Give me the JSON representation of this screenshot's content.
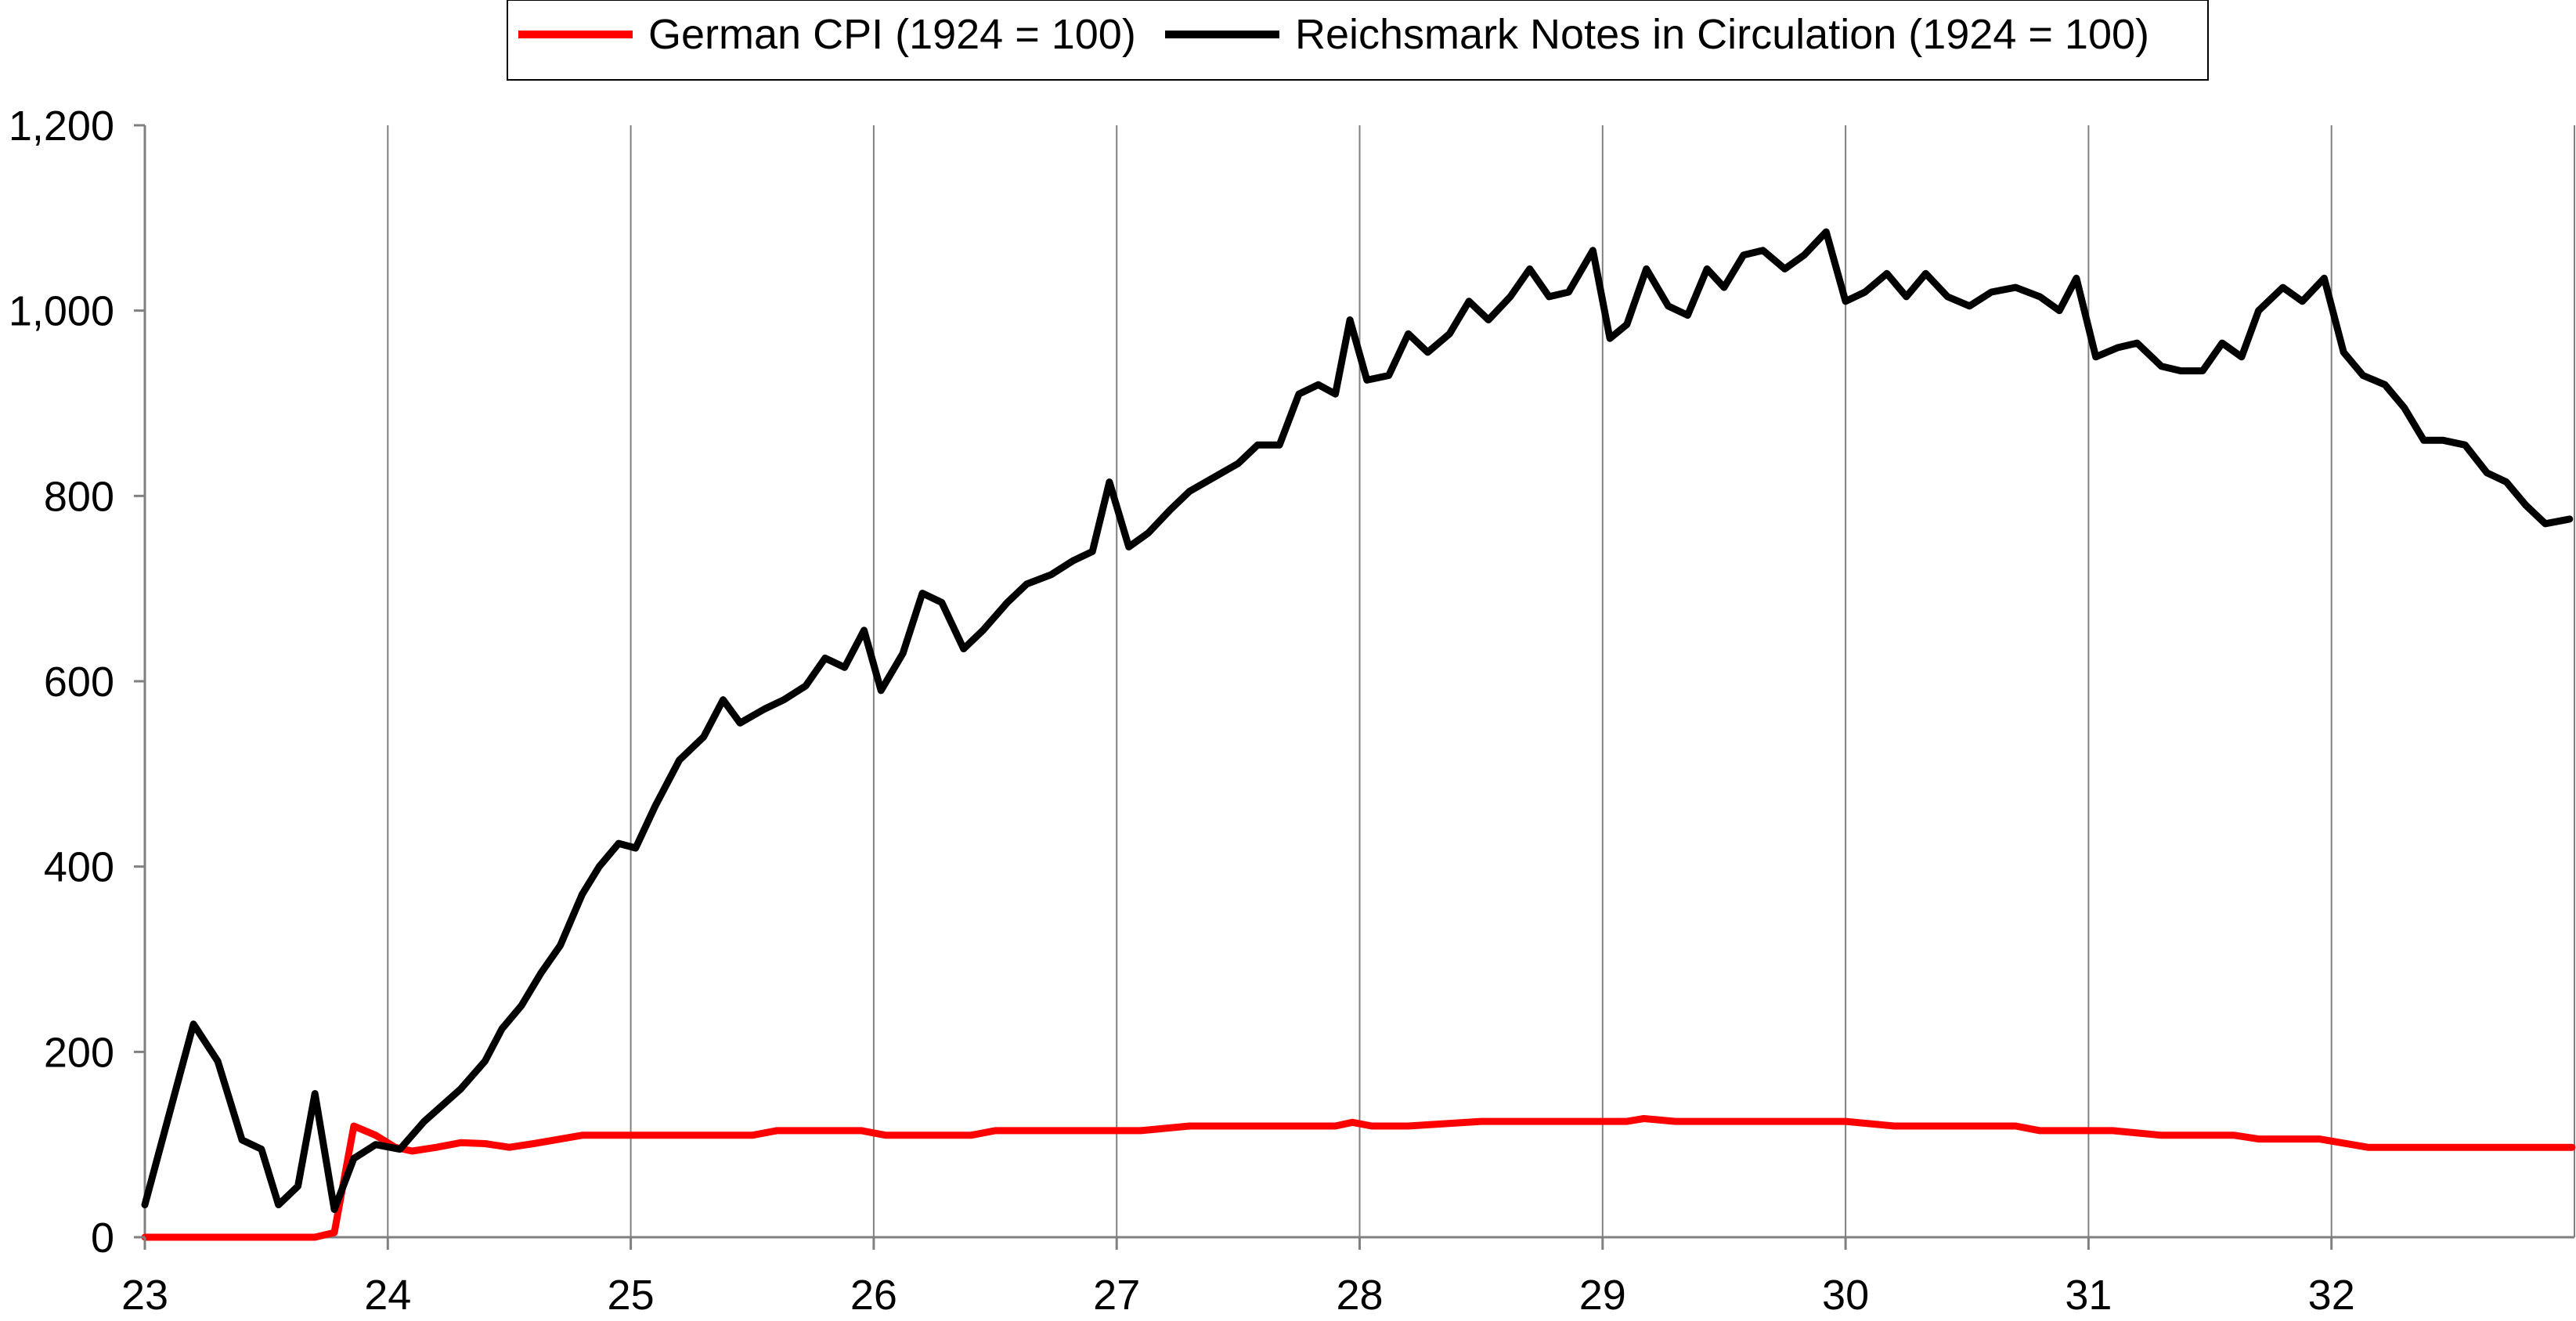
{
  "chart_data": {
    "type": "line",
    "title": "",
    "xlabel": "",
    "ylabel": "",
    "legend_position": "top-center",
    "grid": {
      "vertical": true,
      "horizontal": false
    },
    "xlim": [
      23,
      33
    ],
    "ylim": [
      0,
      1200
    ],
    "x_ticks": [
      23,
      24,
      25,
      26,
      27,
      28,
      29,
      30,
      31,
      32
    ],
    "x_tick_labels": [
      "23",
      "24",
      "25",
      "26",
      "27",
      "28",
      "29",
      "30",
      "31",
      "32"
    ],
    "y_ticks": [
      0,
      200,
      400,
      600,
      800,
      1000,
      1200
    ],
    "y_tick_labels": [
      "0",
      "200",
      "400",
      "600",
      "800",
      "1,000",
      "1,200"
    ],
    "series": [
      {
        "name": "German CPI (1924 = 100)",
        "color": "#ff0000",
        "x": [
          23.0,
          23.1,
          23.2,
          23.3,
          23.4,
          23.5,
          23.6,
          23.7,
          23.78,
          23.86,
          23.95,
          24.03,
          24.1,
          24.2,
          24.3,
          24.4,
          24.5,
          24.6,
          24.8,
          25.0,
          25.2,
          25.5,
          25.6,
          25.8,
          25.95,
          26.05,
          26.2,
          26.4,
          26.5,
          26.7,
          26.9,
          27.1,
          27.3,
          27.5,
          27.7,
          27.9,
          27.97,
          28.05,
          28.2,
          28.5,
          28.8,
          29.1,
          29.17,
          29.3,
          29.6,
          30.0,
          30.2,
          30.5,
          30.7,
          30.8,
          31.1,
          31.3,
          31.6,
          31.7,
          31.95,
          32.15,
          32.5,
          32.99
        ],
        "values": [
          0,
          0,
          0,
          0,
          0,
          0,
          0,
          0,
          5,
          120,
          110,
          97,
          93,
          97,
          102,
          101,
          97,
          101,
          110,
          110,
          110,
          110,
          115,
          115,
          115,
          110,
          110,
          110,
          115,
          115,
          115,
          115,
          120,
          120,
          120,
          120,
          124,
          120,
          120,
          125,
          125,
          125,
          128,
          125,
          125,
          125,
          120,
          120,
          120,
          115,
          115,
          110,
          110,
          106,
          106,
          97,
          97,
          97
        ]
      },
      {
        "name": "Reichsmark Notes in Circulation (1924 = 100)",
        "color": "#000000",
        "x": [
          23.0,
          23.2,
          23.3,
          23.4,
          23.48,
          23.55,
          23.63,
          23.7,
          23.78,
          23.86,
          23.95,
          24.05,
          24.15,
          24.3,
          24.4,
          24.47,
          24.55,
          24.63,
          24.71,
          24.8,
          24.87,
          24.95,
          25.02,
          25.1,
          25.2,
          25.3,
          25.38,
          25.45,
          25.55,
          25.63,
          25.72,
          25.8,
          25.88,
          25.96,
          26.03,
          26.12,
          26.2,
          26.28,
          26.37,
          26.45,
          26.55,
          26.63,
          26.73,
          26.82,
          26.9,
          26.97,
          27.05,
          27.13,
          27.22,
          27.3,
          27.4,
          27.5,
          27.58,
          27.67,
          27.75,
          27.83,
          27.9,
          27.96,
          28.03,
          28.12,
          28.2,
          28.28,
          28.37,
          28.45,
          28.53,
          28.62,
          28.7,
          28.78,
          28.86,
          28.96,
          29.03,
          29.1,
          29.18,
          29.27,
          29.35,
          29.43,
          29.5,
          29.58,
          29.66,
          29.75,
          29.83,
          29.92,
          30.0,
          30.08,
          30.17,
          30.25,
          30.33,
          30.42,
          30.51,
          30.6,
          30.7,
          30.8,
          30.88,
          30.95,
          31.03,
          31.12,
          31.2,
          31.3,
          31.38,
          31.47,
          31.55,
          31.63,
          31.7,
          31.8,
          31.88,
          31.97,
          32.05,
          32.13,
          32.22,
          32.3,
          32.38,
          32.46,
          32.55,
          32.64,
          32.72,
          32.8,
          32.88,
          32.98
        ],
        "values": [
          35,
          230,
          190,
          105,
          95,
          35,
          55,
          155,
          30,
          85,
          100,
          95,
          125,
          160,
          190,
          225,
          250,
          285,
          315,
          370,
          400,
          425,
          420,
          465,
          515,
          540,
          580,
          555,
          570,
          580,
          595,
          625,
          615,
          655,
          590,
          630,
          695,
          685,
          635,
          655,
          685,
          705,
          715,
          730,
          740,
          815,
          745,
          760,
          785,
          805,
          820,
          835,
          855,
          855,
          910,
          920,
          910,
          990,
          925,
          930,
          975,
          955,
          975,
          1010,
          990,
          1015,
          1045,
          1015,
          1020,
          1065,
          970,
          985,
          1045,
          1005,
          995,
          1045,
          1025,
          1060,
          1065,
          1045,
          1060,
          1085,
          1010,
          1020,
          1040,
          1015,
          1040,
          1015,
          1005,
          1020,
          1025,
          1015,
          1000,
          1035,
          950,
          960,
          965,
          940,
          935,
          935,
          965,
          950,
          1000,
          1025,
          1010,
          1035,
          955,
          930,
          920,
          895,
          860,
          860,
          855,
          825,
          815,
          790,
          770,
          775
        ]
      }
    ]
  }
}
